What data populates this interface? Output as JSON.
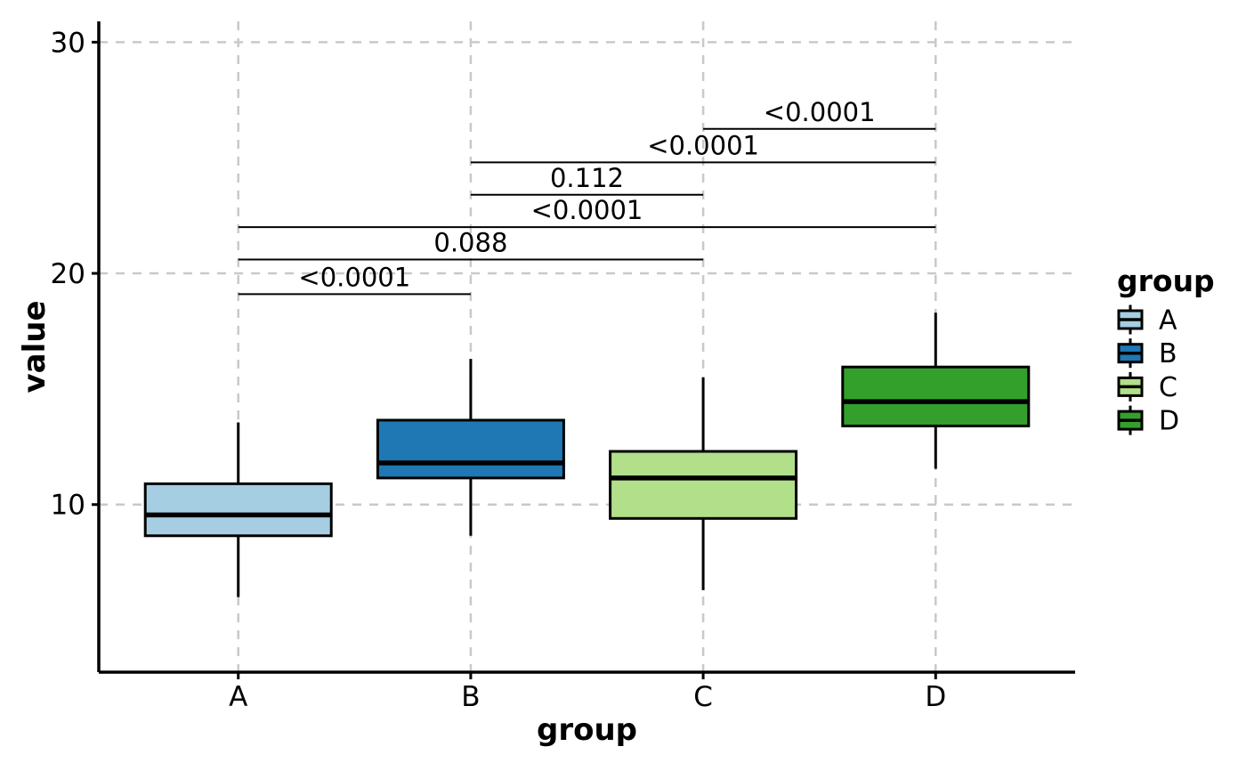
{
  "chart_data": {
    "type": "box",
    "title": "",
    "xlabel": "group",
    "ylabel": "value",
    "categories": [
      "A",
      "B",
      "C",
      "D"
    ],
    "y_ticks": [
      10,
      20,
      30
    ],
    "ylim": [
      2.75,
      30.9
    ],
    "grid": "dashed gray gridlines at y ticks and at each category; classic axes (left & bottom only)",
    "legend_position": "right-middle",
    "series": [
      {
        "name": "A",
        "fill": "#A6CEE3",
        "whisker_low": 6.0,
        "q1": 8.65,
        "median": 9.55,
        "q3": 10.9,
        "whisker_high": 13.55
      },
      {
        "name": "B",
        "fill": "#1F78B4",
        "whisker_low": 8.65,
        "q1": 11.15,
        "median": 11.8,
        "q3": 13.65,
        "whisker_high": 16.3
      },
      {
        "name": "C",
        "fill": "#B2DF8A",
        "whisker_low": 6.3,
        "q1": 9.4,
        "median": 11.15,
        "q3": 12.3,
        "whisker_high": 15.5
      },
      {
        "name": "D",
        "fill": "#33A02C",
        "whisker_low": 11.55,
        "q1": 13.4,
        "median": 14.45,
        "q3": 15.95,
        "whisker_high": 18.3
      }
    ],
    "comparisons": [
      {
        "group1": "A",
        "group2": "B",
        "label": "<0.0001",
        "y": 19.1
      },
      {
        "group1": "A",
        "group2": "C",
        "label": "0.088",
        "y": 20.6
      },
      {
        "group1": "A",
        "group2": "D",
        "label": "<0.0001",
        "y": 22.0
      },
      {
        "group1": "B",
        "group2": "C",
        "label": "0.112",
        "y": 23.4
      },
      {
        "group1": "B",
        "group2": "D",
        "label": "<0.0001",
        "y": 24.8
      },
      {
        "group1": "C",
        "group2": "D",
        "label": "<0.0001",
        "y": 26.25
      }
    ],
    "legend": {
      "title": "group",
      "entries": [
        {
          "label": "A",
          "fill": "#A6CEE3"
        },
        {
          "label": "B",
          "fill": "#1F78B4"
        },
        {
          "label": "C",
          "fill": "#B2DF8A"
        },
        {
          "label": "D",
          "fill": "#33A02C"
        }
      ]
    },
    "colors": {
      "box_border": "#000000",
      "median": "#000000",
      "whisker": "#000000",
      "bracket": "#000000",
      "grid": "#C9C9C9",
      "axis": "#000000",
      "text": "#000000",
      "background": "#FFFFFF"
    }
  }
}
